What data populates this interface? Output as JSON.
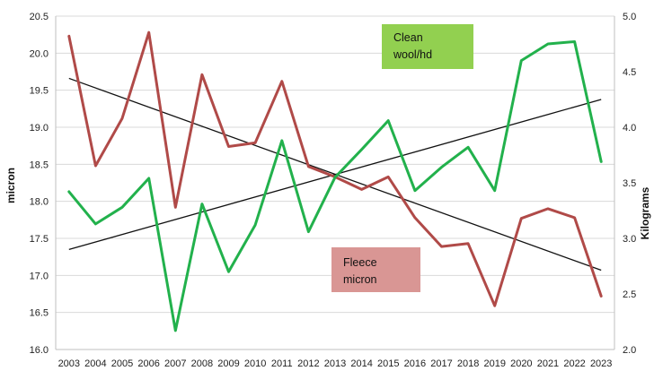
{
  "chart_data": {
    "type": "line",
    "categories": [
      "2003",
      "2004",
      "2005",
      "2006",
      "2007",
      "2008",
      "2009",
      "2010",
      "2011",
      "2012",
      "2013",
      "2014",
      "2015",
      "2016",
      "2017",
      "2018",
      "2019",
      "2020",
      "2021",
      "2022",
      "2023"
    ],
    "y_left": {
      "label": "micron",
      "range": [
        16.0,
        20.5
      ],
      "ticks": [
        "16.0",
        "16.5",
        "17.0",
        "17.5",
        "18.0",
        "18.5",
        "19.0",
        "19.5",
        "20.0",
        "20.5"
      ]
    },
    "y_right": {
      "label": "Kilograms",
      "range": [
        2.0,
        5.0
      ],
      "ticks": [
        "2.0",
        "2.5",
        "3.0",
        "3.5",
        "4.0",
        "4.5",
        "5.0"
      ]
    },
    "grid": "horizontal",
    "series": [
      {
        "name": "Fleece micron",
        "axis": "left",
        "color": "#b04a48",
        "values": [
          20.23,
          18.48,
          19.12,
          20.28,
          17.92,
          19.71,
          18.74,
          18.79,
          19.62,
          18.47,
          18.33,
          18.16,
          18.33,
          17.78,
          17.39,
          17.43,
          16.59,
          17.77,
          17.9,
          17.78,
          16.72
        ]
      },
      {
        "name": "Clean wool/hd",
        "axis": "right",
        "color": "#22b14c",
        "values": [
          3.42,
          3.13,
          3.28,
          3.54,
          2.17,
          3.31,
          2.7,
          3.12,
          3.88,
          3.06,
          3.55,
          3.8,
          4.06,
          3.43,
          3.64,
          3.82,
          3.43,
          4.6,
          4.75,
          4.77,
          3.69
        ]
      }
    ],
    "trendlines": [
      {
        "series": "Fleece micron",
        "axis": "left",
        "start": 19.66,
        "end": 17.07,
        "color": "#111111"
      },
      {
        "series": "Clean wool/hd",
        "axis": "right",
        "start": 2.9,
        "end": 4.25,
        "color": "#111111"
      }
    ],
    "labels": [
      {
        "text_lines": [
          "Clean",
          "wool/hd"
        ],
        "bg": "#92d050"
      },
      {
        "text_lines": [
          "Fleece",
          "micron"
        ],
        "bg": "#d99694"
      }
    ]
  }
}
